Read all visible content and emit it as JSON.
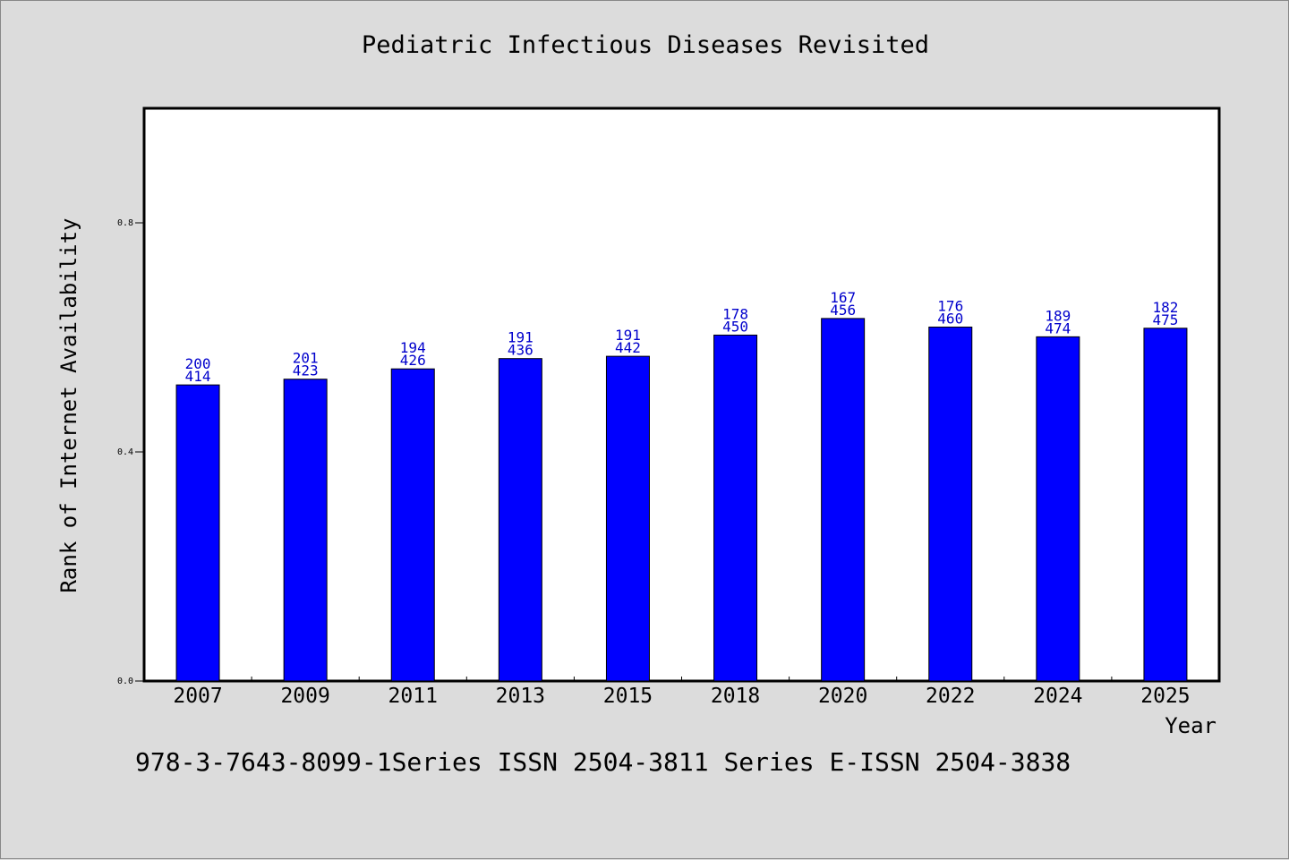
{
  "chart_data": {
    "type": "bar",
    "title": "Pediatric Infectious Diseases Revisited",
    "xlabel": "Year",
    "ylabel": "Rank of Internet Availability",
    "categories": [
      "2007",
      "2009",
      "2011",
      "2013",
      "2015",
      "2018",
      "2020",
      "2022",
      "2024",
      "2025"
    ],
    "values": [
      0.517,
      0.527,
      0.545,
      0.563,
      0.567,
      0.604,
      0.633,
      0.618,
      0.601,
      0.616
    ],
    "label_top": [
      "200",
      "201",
      "194",
      "191",
      "191",
      "178",
      "167",
      "176",
      "189",
      "182"
    ],
    "label_bottom": [
      "414",
      "423",
      "426",
      "436",
      "442",
      "450",
      "456",
      "460",
      "474",
      "475"
    ],
    "yticks": [
      "0.0",
      "0.4",
      "0.8"
    ],
    "ylim": [
      0,
      1.0
    ],
    "bar_color": "#0000ff",
    "label_color": "#0000cc",
    "grid": false,
    "legend": "none"
  },
  "footer": "978-3-7643-8099-1Series ISSN 2504-3811 Series E-ISSN 2504-3838"
}
